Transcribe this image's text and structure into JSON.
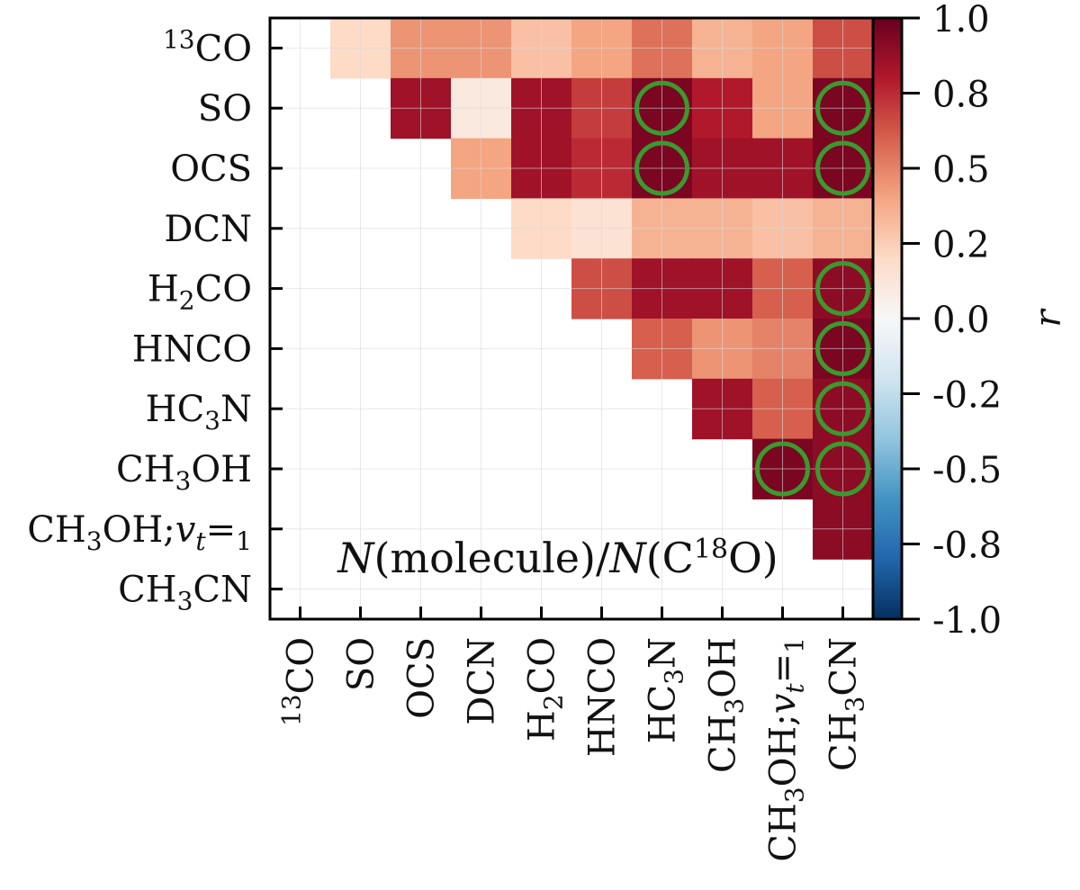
{
  "chart_data": {
    "type": "heatmap",
    "title": "N(molecule)/N(C18O)",
    "annotation": "N(molecule)/N(C18O)",
    "rows": [
      "13CO",
      "SO",
      "OCS",
      "DCN",
      "H2CO",
      "HNCO",
      "HC3N",
      "CH3OH",
      "CH3OH;vt=1",
      "CH3CN"
    ],
    "cols": [
      "13CO",
      "SO",
      "OCS",
      "DCN",
      "H2CO",
      "HNCO",
      "HC3N",
      "CH3OH",
      "CH3OH;vt=1",
      "CH3CN"
    ],
    "values": [
      [
        null,
        0.2,
        0.45,
        0.45,
        0.3,
        0.4,
        0.55,
        0.35,
        0.4,
        0.65
      ],
      [
        null,
        null,
        0.85,
        0.1,
        0.85,
        0.7,
        0.95,
        0.8,
        0.4,
        0.95
      ],
      [
        null,
        null,
        null,
        0.4,
        0.85,
        0.75,
        0.95,
        0.85,
        0.85,
        0.95
      ],
      [
        null,
        null,
        null,
        null,
        0.2,
        0.15,
        0.35,
        0.35,
        0.3,
        0.35
      ],
      [
        null,
        null,
        null,
        null,
        null,
        0.65,
        0.85,
        0.85,
        0.6,
        0.9
      ],
      [
        null,
        null,
        null,
        null,
        null,
        null,
        0.6,
        0.45,
        0.5,
        0.95
      ],
      [
        null,
        null,
        null,
        null,
        null,
        null,
        null,
        0.85,
        0.6,
        0.9
      ],
      [
        null,
        null,
        null,
        null,
        null,
        null,
        null,
        null,
        0.95,
        0.9
      ],
      [
        null,
        null,
        null,
        null,
        null,
        null,
        null,
        null,
        null,
        0.9
      ],
      [
        null,
        null,
        null,
        null,
        null,
        null,
        null,
        null,
        null,
        null
      ]
    ],
    "highlighted": [
      [
        1,
        6
      ],
      [
        1,
        9
      ],
      [
        2,
        6
      ],
      [
        2,
        9
      ],
      [
        4,
        9
      ],
      [
        5,
        9
      ],
      [
        6,
        9
      ],
      [
        7,
        8
      ],
      [
        7,
        9
      ]
    ],
    "colorbar": {
      "label": "r",
      "ticks": [
        "1.0",
        "0.8",
        "0.5",
        "0.2",
        "0.0",
        "-0.2",
        "-0.5",
        "-0.8",
        "-1.0"
      ],
      "range": [
        -1.0,
        1.0
      ]
    },
    "colors": {
      "highlight": "#3a9a2e",
      "cmap_stops": [
        "#053061",
        "#2166ac",
        "#4393c3",
        "#92c5de",
        "#d1e5f0",
        "#f7f7f7",
        "#fddbc7",
        "#f4a582",
        "#d6604d",
        "#b2182b",
        "#67001f"
      ]
    }
  }
}
